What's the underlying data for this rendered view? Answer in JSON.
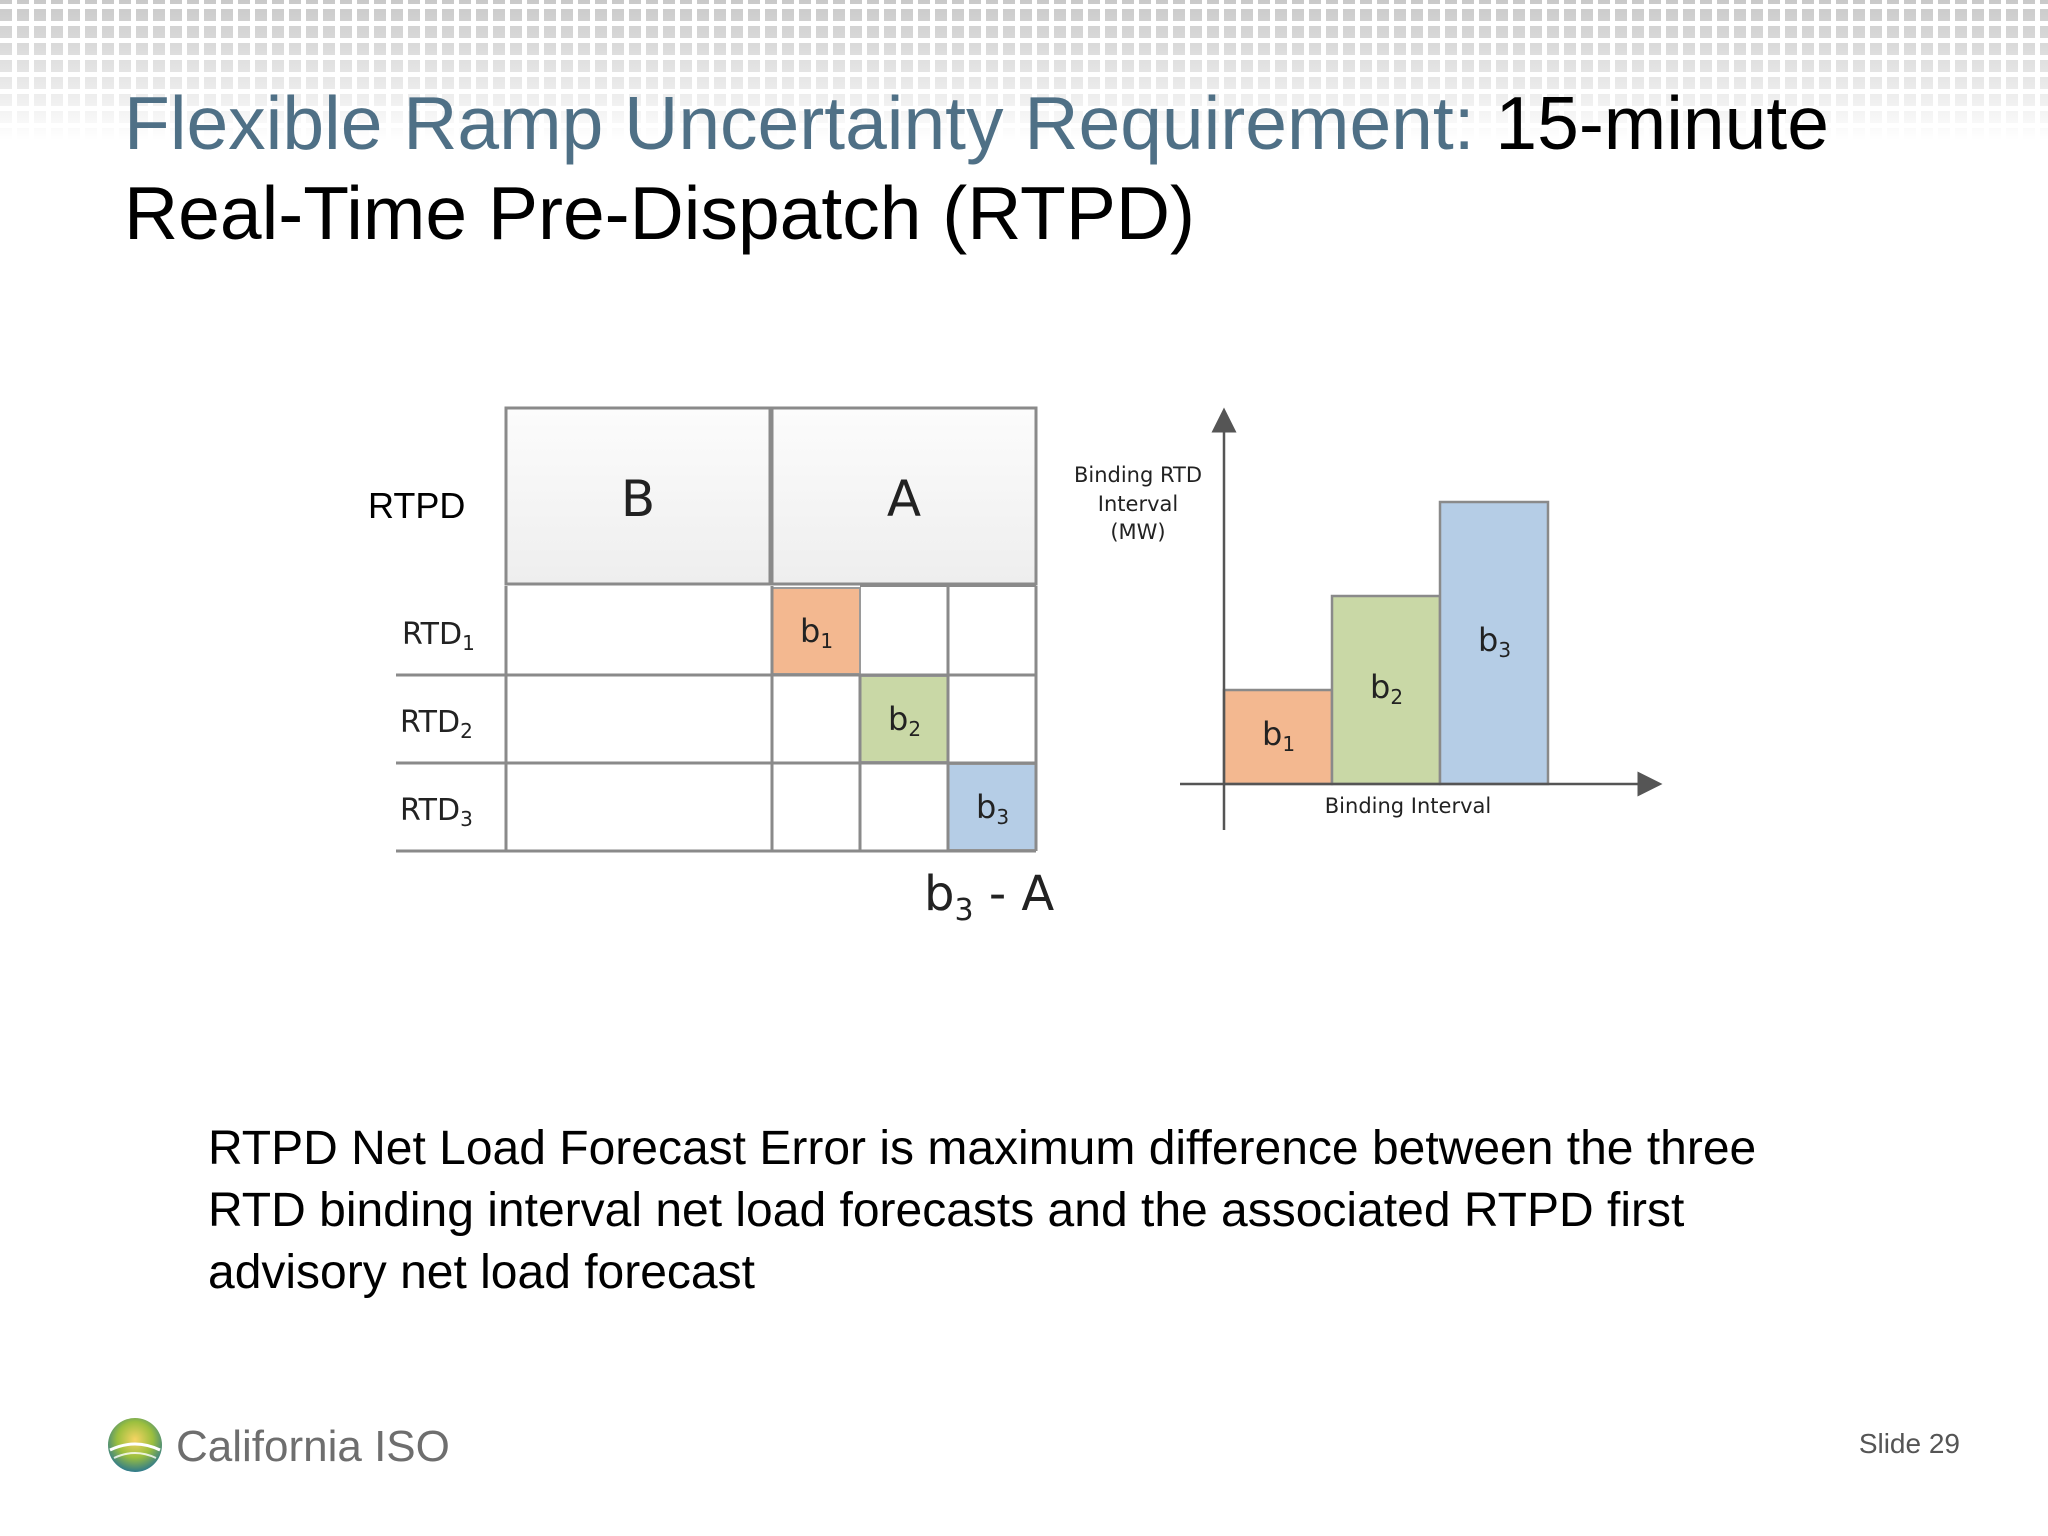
{
  "title": {
    "accent": "Flexible Ramp Uncertainty Requirement:",
    "rest": " 15-minute Real-Time Pre-Dispatch (RTPD)"
  },
  "grid_diagram": {
    "row_header": "RTPD",
    "blocks": [
      "B",
      "A"
    ],
    "rows": [
      {
        "label": "RTD",
        "sub": "1",
        "cell_label": "b",
        "cell_sub": "1",
        "color": "#f3b890"
      },
      {
        "label": "RTD",
        "sub": "2",
        "cell_label": "b",
        "cell_sub": "2",
        "color": "#c9d8a6"
      },
      {
        "label": "RTD",
        "sub": "3",
        "cell_label": "b",
        "cell_sub": "3",
        "color": "#b5cde6"
      }
    ],
    "formula": {
      "b": "b",
      "sub": "3",
      "rest": " - A"
    }
  },
  "bar_diagram": {
    "y_label": [
      "Binding RTD",
      "Interval",
      "(MW)"
    ],
    "x_label": "Binding Interval",
    "bars": [
      {
        "label": "b",
        "sub": "1",
        "level": 1,
        "color": "#f3b890"
      },
      {
        "label": "b",
        "sub": "2",
        "level": 2,
        "color": "#c9d8a6"
      },
      {
        "label": "b",
        "sub": "3",
        "level": 3,
        "color": "#b5cde6"
      }
    ]
  },
  "caption": "RTPD Net Load Forecast Error is maximum difference between the three RTD binding interval net load forecasts and the associated RTPD first advisory net load forecast",
  "footer": {
    "logo_text": "California ISO",
    "slide_number": "Slide 29"
  }
}
